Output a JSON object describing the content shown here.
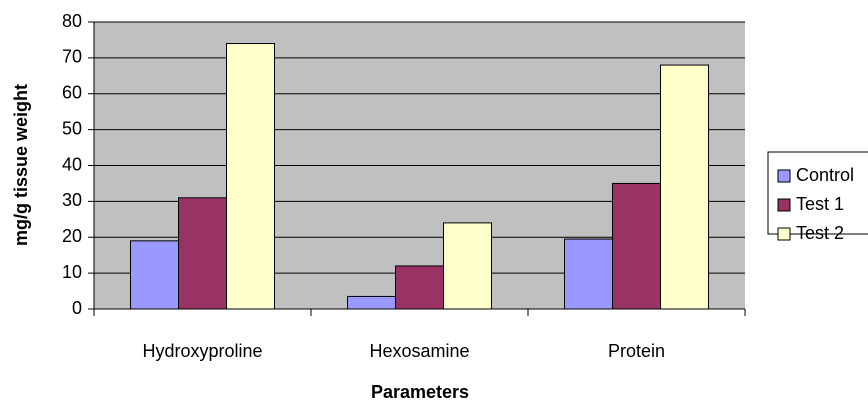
{
  "chart_data": {
    "type": "bar",
    "categories": [
      "Hydroxyproline",
      "Hexosamine",
      "Protein"
    ],
    "series": [
      {
        "name": "Control",
        "color": "#9999ff",
        "values": [
          19,
          3.5,
          19.5
        ]
      },
      {
        "name": "Test 1",
        "color": "#993366",
        "values": [
          31,
          12,
          35
        ]
      },
      {
        "name": "Test 2",
        "color": "#ffffcc",
        "values": [
          74,
          24,
          68
        ]
      }
    ],
    "xlabel": "Parameters",
    "ylabel": "mg/g tissue weight",
    "ylim": [
      0,
      80
    ],
    "yticks": [
      0,
      10,
      20,
      30,
      40,
      50,
      60,
      70,
      80
    ],
    "grid": true,
    "legend": "right"
  }
}
